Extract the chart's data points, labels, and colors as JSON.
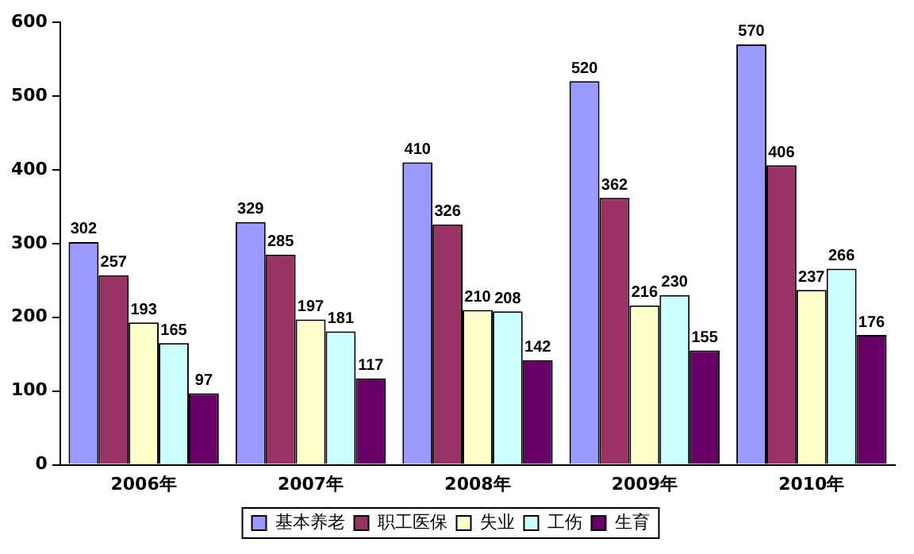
{
  "chart_data": {
    "type": "bar",
    "categories": [
      "2006年",
      "2007年",
      "2008年",
      "2009年",
      "2010年"
    ],
    "series": [
      {
        "name": "基本养老",
        "color": "#9999ff",
        "values": [
          302,
          329,
          410,
          520,
          570
        ]
      },
      {
        "name": "职工医保",
        "color": "#993366",
        "values": [
          257,
          285,
          326,
          362,
          406
        ]
      },
      {
        "name": "失业",
        "color": "#ffffcc",
        "values": [
          193,
          197,
          210,
          216,
          237
        ]
      },
      {
        "name": "工伤",
        "color": "#ccffff",
        "values": [
          165,
          181,
          208,
          230,
          266
        ]
      },
      {
        "name": "生育",
        "color": "#660066",
        "values": [
          97,
          117,
          142,
          155,
          176
        ]
      }
    ],
    "ylim": [
      0,
      600
    ],
    "yticks": [
      0,
      100,
      200,
      300,
      400,
      500,
      600
    ],
    "grid": false,
    "legend": "bottom",
    "data_labels": true
  }
}
